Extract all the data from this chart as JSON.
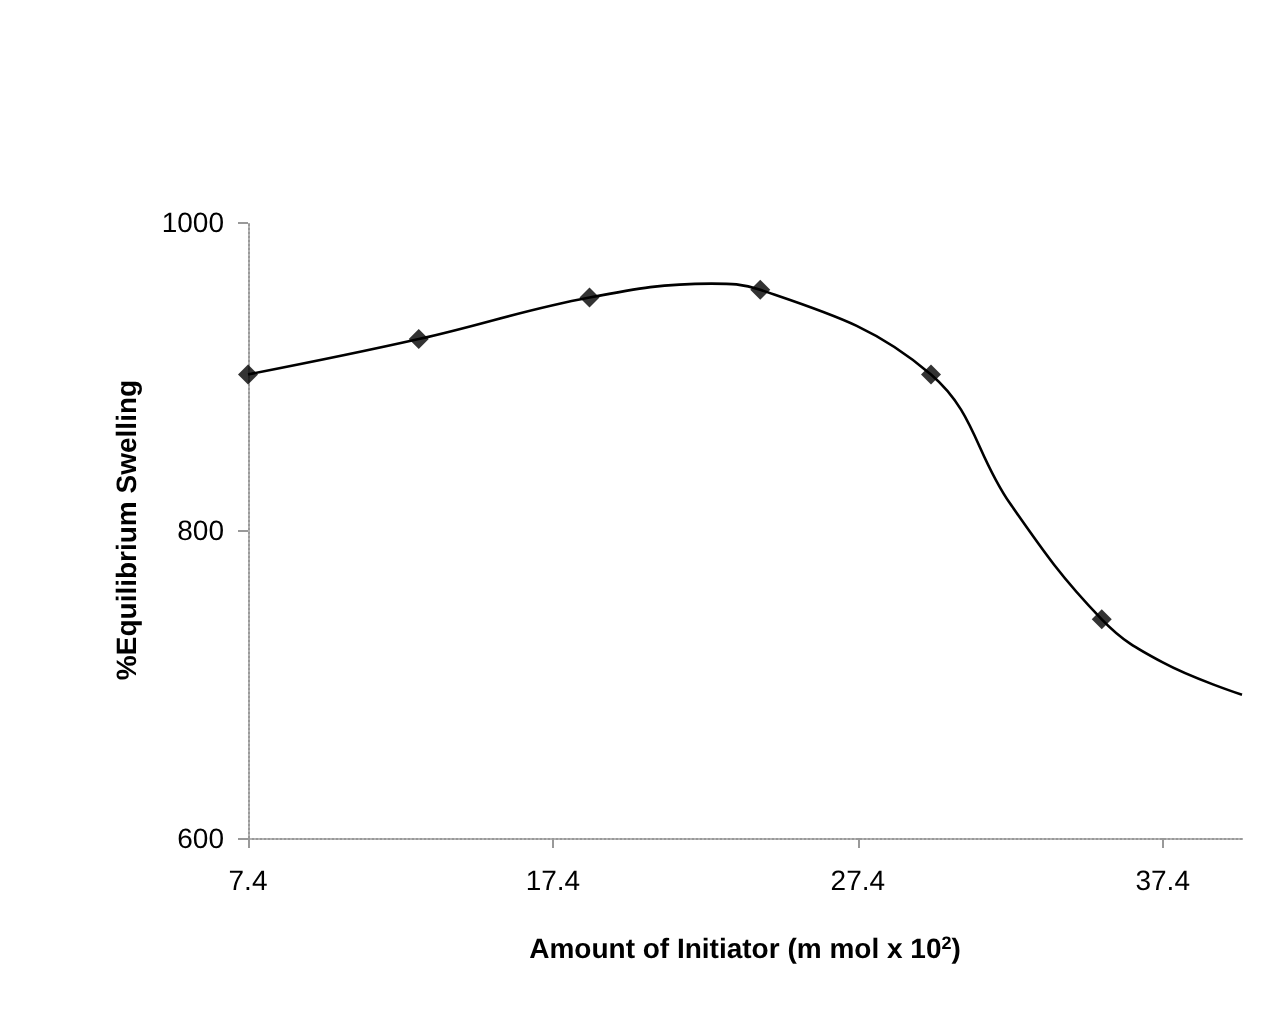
{
  "chart_data": {
    "type": "line",
    "xlabel": "Amount of Initiator (m mol x 10$^{2}$)",
    "ylabel": "%Equilibrium Swelling",
    "series": [
      {
        "color": "#000000",
        "marker": "none",
        "x": [
          7.4,
          13,
          18.6,
          22.6,
          24.2,
          29.8,
          32.4,
          35.4,
          37.4,
          40
        ],
        "values": [
          901,
          924,
          951,
          960,
          956,
          901,
          817,
          742,
          714,
          693
        ]
      },
      {
        "type": "scatter",
        "color": "#000000",
        "marker": "diamond",
        "x": [
          7.4,
          13,
          18.6,
          24.2,
          29.8,
          35.4
        ],
        "values": [
          901,
          924,
          951,
          956,
          901,
          742
        ]
      }
    ],
    "xlim": [
      7.4,
      40
    ],
    "xticks": [
      7.4,
      17.4,
      27.4,
      37.4
    ],
    "ylim": [
      600,
      1000
    ],
    "yticks": [
      600,
      800,
      1000
    ],
    "grid": false
  }
}
